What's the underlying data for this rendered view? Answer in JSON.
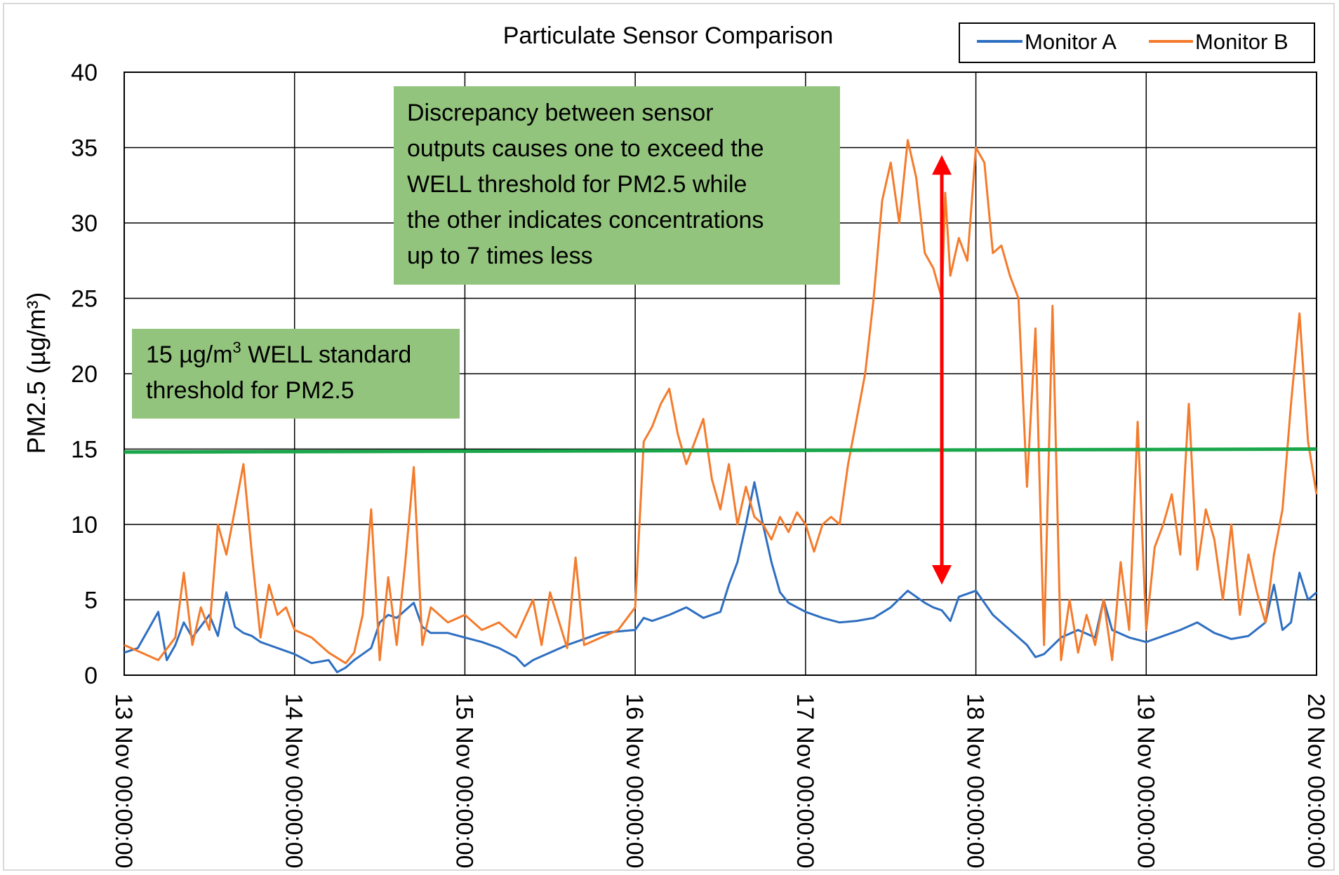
{
  "chart_data": {
    "type": "line",
    "title": "Particulate Sensor Comparison",
    "ylabel": "PM2.5 (µg/m³)",
    "xlabel": "",
    "ylim": [
      0,
      40
    ],
    "yticks": [
      0,
      5,
      10,
      15,
      20,
      25,
      30,
      35,
      40
    ],
    "xlim": [
      0,
      7
    ],
    "x_units": "days since 13 Nov 00:00:00",
    "xtick_labels": [
      "13 Nov 00:00:00",
      "14 Nov 00:00:00",
      "15 Nov 00:00:00",
      "16 Nov 00:00:00",
      "17 Nov 00:00:00",
      "18 Nov 00:00:00",
      "19 Nov 00:00:00",
      "20 Nov 00:00:00"
    ],
    "grid": true,
    "legend_position": "top-right",
    "series": [
      {
        "name": "Monitor A",
        "color": "#2e6fc1",
        "x": [
          0,
          0.08,
          0.15,
          0.2,
          0.25,
          0.3,
          0.35,
          0.4,
          0.5,
          0.55,
          0.6,
          0.65,
          0.7,
          0.75,
          0.8,
          0.9,
          1.0,
          1.1,
          1.2,
          1.25,
          1.3,
          1.35,
          1.45,
          1.5,
          1.55,
          1.6,
          1.7,
          1.75,
          1.8,
          1.9,
          2.0,
          2.1,
          2.2,
          2.3,
          2.35,
          2.4,
          2.5,
          2.6,
          2.7,
          2.8,
          2.9,
          3.0,
          3.05,
          3.1,
          3.2,
          3.3,
          3.4,
          3.5,
          3.55,
          3.6,
          3.65,
          3.7,
          3.75,
          3.8,
          3.85,
          3.9,
          4.0,
          4.1,
          4.2,
          4.3,
          4.4,
          4.5,
          4.6,
          4.7,
          4.75,
          4.8,
          4.85,
          4.9,
          5.0,
          5.1,
          5.2,
          5.25,
          5.3,
          5.35,
          5.4,
          5.5,
          5.6,
          5.7,
          5.75,
          5.8,
          5.9,
          6.0,
          6.1,
          6.2,
          6.3,
          6.4,
          6.5,
          6.6,
          6.7,
          6.75,
          6.8,
          6.85,
          6.9,
          6.95,
          7.0
        ],
        "y": [
          1.5,
          1.8,
          3.2,
          4.2,
          1.0,
          2.0,
          3.5,
          2.5,
          4.0,
          2.6,
          5.5,
          3.2,
          2.8,
          2.6,
          2.2,
          1.8,
          1.4,
          0.8,
          1.0,
          0.2,
          0.5,
          1.0,
          1.8,
          3.5,
          4.0,
          3.8,
          4.8,
          3.2,
          2.8,
          2.8,
          2.5,
          2.2,
          1.8,
          1.2,
          0.6,
          1.0,
          1.5,
          2.0,
          2.4,
          2.8,
          2.9,
          3.0,
          3.8,
          3.6,
          4.0,
          4.5,
          3.8,
          4.2,
          6.0,
          7.5,
          10.0,
          12.8,
          10.0,
          7.5,
          5.5,
          4.8,
          4.2,
          3.8,
          3.5,
          3.6,
          3.8,
          4.5,
          5.6,
          4.8,
          4.5,
          4.3,
          3.6,
          5.2,
          5.6,
          4.0,
          3.0,
          2.5,
          2.0,
          1.2,
          1.4,
          2.5,
          3.0,
          2.5,
          5.0,
          3.0,
          2.5,
          2.2,
          2.6,
          3.0,
          3.5,
          2.8,
          2.4,
          2.6,
          3.5,
          6.0,
          3.0,
          3.5,
          6.8,
          5.0,
          5.5
        ]
      },
      {
        "name": "Monitor B",
        "color": "#f47b2c",
        "x": [
          0,
          0.1,
          0.2,
          0.3,
          0.35,
          0.4,
          0.45,
          0.5,
          0.55,
          0.6,
          0.65,
          0.7,
          0.75,
          0.8,
          0.85,
          0.9,
          0.95,
          1.0,
          1.1,
          1.2,
          1.3,
          1.35,
          1.4,
          1.45,
          1.5,
          1.55,
          1.6,
          1.65,
          1.7,
          1.75,
          1.8,
          1.9,
          2.0,
          2.1,
          2.2,
          2.3,
          2.4,
          2.45,
          2.5,
          2.6,
          2.65,
          2.7,
          2.8,
          2.9,
          3.0,
          3.05,
          3.1,
          3.15,
          3.2,
          3.25,
          3.3,
          3.35,
          3.4,
          3.45,
          3.5,
          3.55,
          3.6,
          3.65,
          3.7,
          3.75,
          3.8,
          3.85,
          3.9,
          3.95,
          4.0,
          4.05,
          4.1,
          4.15,
          4.2,
          4.25,
          4.3,
          4.35,
          4.4,
          4.45,
          4.5,
          4.55,
          4.6,
          4.65,
          4.7,
          4.75,
          4.8,
          4.82,
          4.85,
          4.9,
          4.95,
          5.0,
          5.05,
          5.1,
          5.15,
          5.2,
          5.25,
          5.27,
          5.3,
          5.35,
          5.4,
          5.45,
          5.5,
          5.55,
          5.6,
          5.65,
          5.7,
          5.75,
          5.8,
          5.85,
          5.9,
          5.95,
          6.0,
          6.05,
          6.1,
          6.15,
          6.2,
          6.25,
          6.3,
          6.35,
          6.4,
          6.45,
          6.5,
          6.55,
          6.6,
          6.65,
          6.7,
          6.75,
          6.8,
          6.85,
          6.9,
          6.95,
          7.0
        ],
        "y": [
          2.0,
          1.5,
          1.0,
          2.5,
          6.8,
          2.0,
          4.5,
          3.0,
          10.0,
          8.0,
          11.0,
          14.0,
          8.0,
          2.5,
          6.0,
          4.0,
          4.5,
          3.0,
          2.5,
          1.5,
          0.8,
          1.5,
          4.0,
          11.0,
          1.0,
          6.5,
          2.0,
          7.5,
          13.8,
          2.0,
          4.5,
          3.5,
          4.0,
          3.0,
          3.5,
          2.5,
          5.0,
          2.0,
          5.5,
          1.8,
          7.8,
          2.0,
          2.5,
          3.0,
          4.5,
          15.5,
          16.5,
          18.0,
          19.0,
          16.0,
          14.0,
          15.5,
          17.0,
          13.0,
          11.0,
          14.0,
          10.0,
          12.5,
          10.5,
          10.0,
          9.0,
          10.5,
          9.5,
          10.8,
          10.0,
          8.2,
          10.0,
          10.5,
          10.0,
          14.0,
          17.0,
          20.0,
          25.0,
          31.5,
          34.0,
          30.0,
          35.5,
          33.0,
          28.0,
          27.0,
          25.0,
          32.0,
          26.5,
          29.0,
          27.5,
          35.0,
          34.0,
          28.0,
          28.5,
          26.5,
          25.0,
          20.0,
          12.5,
          23.0,
          2.0,
          24.5,
          1.0,
          5.0,
          1.5,
          4.0,
          2.0,
          5.0,
          1.0,
          7.5,
          3.0,
          16.8,
          3.0,
          8.5,
          10.0,
          12.0,
          8.0,
          18.0,
          7.0,
          11.0,
          9.0,
          5.0,
          10.0,
          4.0,
          8.0,
          5.5,
          3.5,
          8.0,
          11.0,
          18.0,
          24.0,
          15.5,
          12.0
        ]
      },
      {
        "name": "",
        "color": "#1aa64b",
        "x": [
          0,
          7
        ],
        "y": [
          14.8,
          15.0
        ]
      }
    ],
    "annotations": {
      "threshold_box": {
        "line1_pre": "15 µg/m",
        "line1_sup": "3",
        "line1_post": " WELL standard",
        "line2": "threshold for PM2.5",
        "background": "#93c47d"
      },
      "discrepancy_box": {
        "lines": [
          "Discrepancy between sensor",
          "outputs causes one to exceed the",
          "WELL threshold for PM2.5 while",
          "the other indicates concentrations",
          "up to 7 times less"
        ],
        "background": "#93c47d"
      },
      "arrow": {
        "color": "#ff0000",
        "x": 4.8,
        "y_from": 6.0,
        "y_to": 34.5
      }
    }
  }
}
